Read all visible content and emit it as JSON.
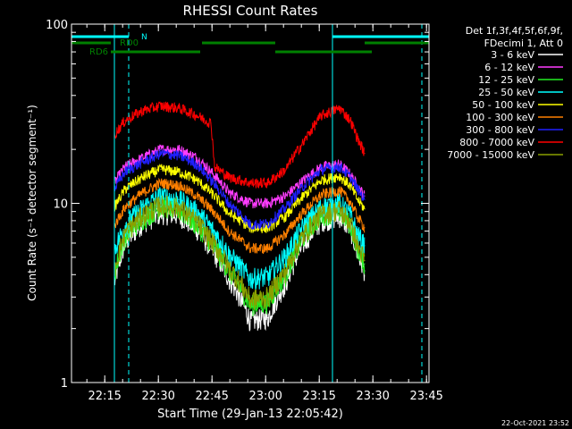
{
  "chart_data": {
    "type": "line",
    "title": "RHESSI Count Rates",
    "xlabel": "Start Time (29-Jan-13 22:05:42)",
    "ylabel": "Count Rate (s⁻¹ detector segment⁻¹)",
    "ylog": true,
    "ylim": [
      1,
      100
    ],
    "xlim_minutes_since_start": [
      0,
      100
    ],
    "x_ticks": [
      "22:15",
      "22:30",
      "22:45",
      "23:00",
      "23:15",
      "23:30",
      "23:45"
    ],
    "x_tick_minutes": [
      9.3,
      24.3,
      39.3,
      54.3,
      69.3,
      84.3,
      99.3
    ],
    "y_ticks": [
      1,
      10,
      100
    ],
    "y_tick_labels": [
      "1",
      "10",
      "100"
    ],
    "legend_header": [
      "Det 1f,3f,4f,5f,6f,9f,",
      "FDecimi 1, Att 0"
    ],
    "legend_placement": "right",
    "date_stamp": "22-Oct-2021 23:52",
    "series": [
      {
        "name": "3 - 6 keV",
        "color": "#ffffff",
        "x": [
          12,
          15,
          20,
          25,
          30,
          35,
          39,
          44,
          50,
          55,
          60,
          65,
          70,
          75,
          78,
          80,
          82
        ],
        "values": [
          3.6,
          6.0,
          7.8,
          8.8,
          8.6,
          7.2,
          5.6,
          3.8,
          2.2,
          2.3,
          3.6,
          6.0,
          8.0,
          8.4,
          7.2,
          5.2,
          4.2
        ]
      },
      {
        "name": "6 - 12 keV",
        "color": "#ff3cff",
        "x": [
          12,
          15,
          20,
          25,
          30,
          35,
          39,
          44,
          50,
          55,
          60,
          65,
          70,
          75,
          78,
          80,
          82
        ],
        "values": [
          13,
          16,
          18,
          20,
          20,
          18,
          15,
          11.5,
          10,
          10,
          11,
          13.5,
          16,
          16.5,
          14.5,
          12.5,
          11
        ]
      },
      {
        "name": "12 - 25 keV",
        "color": "#22ee22",
        "x": [
          12,
          15,
          20,
          25,
          30,
          35,
          39,
          44,
          50,
          55,
          60,
          65,
          70,
          75,
          78,
          80,
          82
        ],
        "values": [
          4.0,
          6.5,
          8.2,
          9.6,
          9.2,
          7.6,
          6.0,
          4.2,
          2.7,
          2.8,
          4.0,
          6.5,
          8.6,
          9.0,
          7.6,
          5.6,
          4.6
        ]
      },
      {
        "name": "25 - 50 keV",
        "color": "#00ffff",
        "x": [
          12,
          15,
          20,
          25,
          30,
          35,
          39,
          44,
          50,
          55,
          60,
          65,
          70,
          75,
          78,
          80,
          82
        ],
        "values": [
          5.5,
          7.5,
          9.5,
          11,
          10.5,
          9,
          7.3,
          5.2,
          3.8,
          3.9,
          5.1,
          7.5,
          9.6,
          10,
          8.6,
          6.7,
          5.8
        ]
      },
      {
        "name": "50 - 100 keV",
        "color": "#ffff00",
        "x": [
          12,
          15,
          20,
          25,
          30,
          35,
          39,
          44,
          50,
          55,
          60,
          65,
          70,
          75,
          78,
          80,
          82
        ],
        "values": [
          9.5,
          12,
          14,
          15.5,
          15,
          13.5,
          11.5,
          8.8,
          7.3,
          7.3,
          8.5,
          11,
          13.5,
          14.2,
          12.5,
          10.5,
          9.3
        ]
      },
      {
        "name": "100 - 300 keV",
        "color": "#ff8000",
        "x": [
          12,
          15,
          20,
          25,
          30,
          35,
          39,
          44,
          50,
          55,
          60,
          65,
          70,
          75,
          78,
          80,
          82
        ],
        "values": [
          7.5,
          9.5,
          11.5,
          13,
          12.6,
          11,
          9.3,
          7.0,
          5.6,
          5.6,
          6.8,
          9.0,
          11.2,
          11.8,
          10.2,
          8.4,
          7.3
        ]
      },
      {
        "name": "300 - 800 keV",
        "color": "#2020ff",
        "x": [
          12,
          15,
          20,
          25,
          30,
          35,
          39,
          44,
          50,
          55,
          60,
          65,
          70,
          75,
          78,
          80,
          82
        ],
        "values": [
          12,
          15,
          17,
          19,
          18.5,
          16.5,
          13.5,
          10,
          7.6,
          7.7,
          9.5,
          12.5,
          15.5,
          16,
          14,
          12,
          10.5
        ]
      },
      {
        "name": "800 - 7000 keV",
        "color": "#ff0000",
        "x": [
          12,
          15,
          20,
          25,
          30,
          35,
          39,
          40,
          44,
          50,
          55,
          60,
          65,
          70,
          75,
          78,
          80,
          82
        ],
        "values": [
          24,
          29,
          33,
          35,
          34,
          31,
          28,
          16,
          14,
          13,
          13,
          15.5,
          22,
          31,
          34,
          29,
          23,
          19
        ]
      },
      {
        "name": "7000 - 15000 keV",
        "color": "#8aa000",
        "x": [
          12,
          15,
          20,
          25,
          30,
          35,
          39,
          44,
          50,
          55,
          60,
          65,
          70,
          75,
          78,
          80,
          82
        ],
        "values": [
          4.3,
          6.8,
          8.6,
          9.8,
          9.5,
          7.9,
          6.2,
          4.4,
          2.9,
          3.0,
          4.2,
          6.7,
          8.8,
          9.2,
          7.8,
          5.8,
          4.8
        ]
      }
    ],
    "annotations": [
      {
        "name": "N",
        "color": "#00ffff",
        "kind": "state_bar",
        "segments_minutes": [
          [
            0,
            16
          ],
          [
            73,
            100
          ]
        ]
      },
      {
        "name": "RD0",
        "color": "#008000",
        "kind": "state_bar",
        "segments_minutes": [
          [
            0,
            11
          ],
          [
            36.5,
            57
          ],
          [
            82,
            100
          ]
        ]
      },
      {
        "name": "RD6",
        "color": "#008000",
        "kind": "state_bar",
        "segments_minutes": [
          [
            11,
            36
          ],
          [
            57,
            84
          ]
        ]
      },
      {
        "kind": "vline_solid",
        "color": "#00ffff",
        "at_minutes": [
          0,
          12,
          73
        ]
      },
      {
        "kind": "vline_dashed",
        "color": "#00ffff",
        "at_minutes": [
          16,
          98
        ]
      }
    ]
  }
}
